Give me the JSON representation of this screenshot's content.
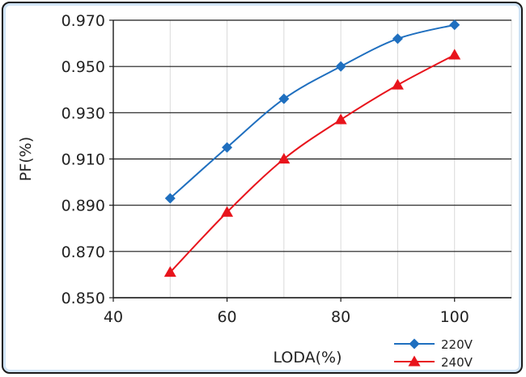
{
  "chart_data": {
    "type": "line",
    "title": "",
    "xlabel": "LODA(%)",
    "ylabel": "PF(%)",
    "xlim": [
      40,
      110
    ],
    "ylim": [
      0.85,
      0.97
    ],
    "x_ticks": [
      "40",
      "60",
      "80",
      "100"
    ],
    "y_ticks": [
      "0.850",
      "0.870",
      "0.890",
      "0.910",
      "0.930",
      "0.950",
      "0.970"
    ],
    "grid": true,
    "legend_position": "bottom-right",
    "series": [
      {
        "name": "220V",
        "color": "#1f6fbf",
        "marker": "diamond",
        "x": [
          50,
          60,
          70,
          80,
          90,
          100
        ],
        "values": [
          0.893,
          0.915,
          0.936,
          0.95,
          0.962,
          0.968
        ]
      },
      {
        "name": "240V",
        "color": "#e8141c",
        "marker": "triangle",
        "x": [
          50,
          60,
          70,
          80,
          90,
          100
        ],
        "values": [
          0.861,
          0.887,
          0.91,
          0.927,
          0.942,
          0.955
        ]
      }
    ]
  }
}
